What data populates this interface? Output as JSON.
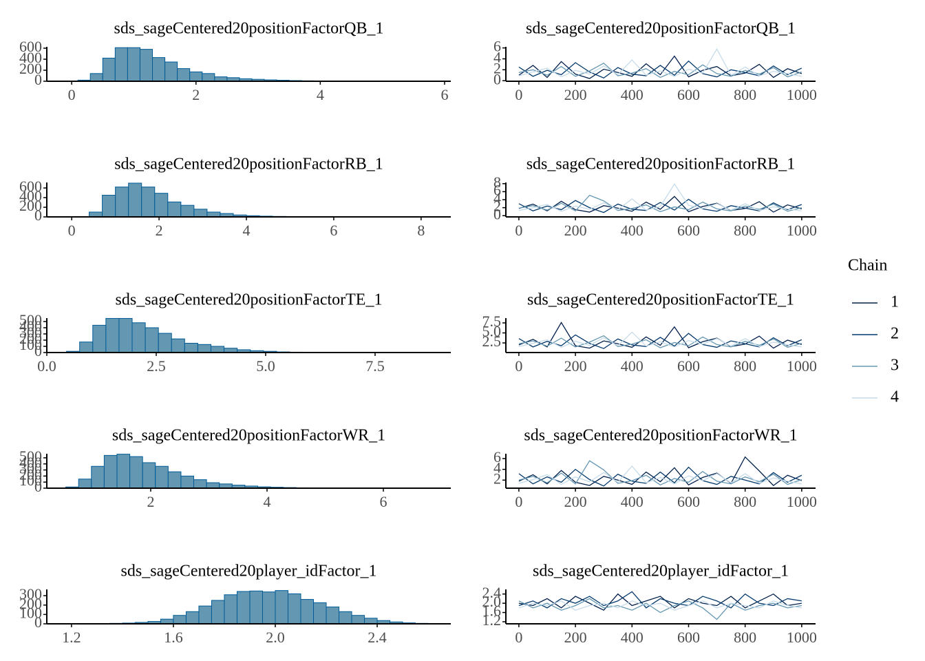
{
  "legend": {
    "title": "Chain",
    "position": "right"
  },
  "chart_data": [
    {
      "type": "histogram",
      "title": "sds_sageCentered20positionFactorQB_1",
      "color": "#6497b1",
      "edgecolor": "#005b96",
      "bins": [
        0.1,
        0.3,
        0.5,
        0.7,
        0.9,
        1.1,
        1.3,
        1.5,
        1.7,
        1.9,
        2.1,
        2.3,
        2.5,
        2.7,
        2.9,
        3.1,
        3.3,
        3.5,
        3.7,
        3.9,
        4.1,
        4.3,
        4.5,
        4.7
      ],
      "counts": [
        20,
        140,
        420,
        610,
        610,
        580,
        430,
        350,
        230,
        170,
        140,
        80,
        65,
        45,
        35,
        25,
        18,
        12,
        8,
        6,
        4,
        3,
        2
      ],
      "xlim": [
        -0.4,
        6.1
      ],
      "ylim": [
        0,
        625
      ],
      "xticks": [
        0,
        2,
        4,
        6
      ],
      "yticks": [
        0,
        200,
        400,
        600
      ]
    },
    {
      "type": "histogram",
      "title": "sds_sageCentered20positionFactorRB_1",
      "color": "#6497b1",
      "edgecolor": "#005b96",
      "bins": [
        0.4,
        0.7,
        1.0,
        1.3,
        1.6,
        1.9,
        2.2,
        2.5,
        2.8,
        3.1,
        3.4,
        3.7,
        4.0,
        4.3,
        4.6,
        4.9,
        5.2
      ],
      "counts": [
        100,
        450,
        620,
        700,
        620,
        490,
        310,
        240,
        160,
        100,
        70,
        40,
        25,
        15,
        10,
        5
      ],
      "xlim": [
        -0.57,
        8.68
      ],
      "ylim": [
        0,
        714
      ],
      "xticks": [
        0,
        2,
        4,
        6,
        8
      ],
      "yticks": [
        0,
        200,
        400,
        600
      ]
    },
    {
      "type": "histogram",
      "title": "sds_sageCentered20positionFactorTE_1",
      "color": "#6497b1",
      "edgecolor": "#005b96",
      "bins": [
        0.45,
        0.75,
        1.05,
        1.35,
        1.65,
        1.95,
        2.25,
        2.55,
        2.85,
        3.15,
        3.45,
        3.75,
        4.05,
        4.35,
        4.65,
        4.95,
        5.25,
        5.55,
        5.85,
        6.15
      ],
      "counts": [
        20,
        170,
        440,
        550,
        550,
        480,
        400,
        310,
        220,
        150,
        130,
        100,
        70,
        45,
        30,
        20,
        10,
        6,
        4
      ],
      "xlim": [
        0,
        9.23
      ],
      "ylim": [
        0,
        555
      ],
      "xticks": [
        {
          "value": 0,
          "label": "0.0"
        },
        2.5,
        {
          "value": 5,
          "label": "5.0"
        },
        7.5
      ],
      "yticks": [
        0,
        100,
        200,
        300,
        400,
        500
      ]
    },
    {
      "type": "histogram",
      "title": "sds_sageCentered20positionFactorWR_1",
      "color": "#6497b1",
      "edgecolor": "#005b96",
      "bins": [
        0.54,
        0.76,
        0.98,
        1.2,
        1.42,
        1.64,
        1.86,
        2.08,
        2.3,
        2.52,
        2.74,
        2.96,
        3.18,
        3.4,
        3.62,
        3.84,
        4.06,
        4.28,
        4.5,
        4.72,
        4.94
      ],
      "counts": [
        20,
        150,
        360,
        540,
        560,
        520,
        420,
        360,
        270,
        200,
        140,
        90,
        70,
        50,
        35,
        22,
        15,
        10,
        6,
        4
      ],
      "xlim": [
        0.213,
        7.16
      ],
      "ylim": [
        0,
        567
      ],
      "xticks": [
        2,
        4,
        6
      ],
      "yticks": [
        0,
        100,
        200,
        300,
        400,
        500
      ]
    },
    {
      "type": "histogram",
      "title": "sds_sageCentered20player_idFactor_1",
      "color": "#6497b1",
      "edgecolor": "#005b96",
      "bins": [
        1.2,
        1.25,
        1.3,
        1.35,
        1.4,
        1.45,
        1.5,
        1.55,
        1.6,
        1.65,
        1.7,
        1.75,
        1.8,
        1.85,
        1.9,
        1.95,
        2.0,
        2.05,
        2.1,
        2.15,
        2.2,
        2.25,
        2.3,
        2.35,
        2.4,
        2.45,
        2.5,
        2.55,
        2.6,
        2.65
      ],
      "counts": [
        1,
        2,
        3,
        5,
        8,
        15,
        25,
        50,
        90,
        130,
        190,
        250,
        310,
        345,
        350,
        340,
        355,
        320,
        260,
        225,
        180,
        130,
        90,
        60,
        35,
        20,
        10,
        5,
        2
      ],
      "xlim": [
        1.103,
        2.689
      ],
      "ylim": [
        0,
        367
      ],
      "xticks": [
        1.2,
        1.6,
        {
          "value": 2,
          "label": "2.0"
        },
        2.4
      ],
      "yticks": [
        0,
        100,
        200,
        300
      ]
    },
    {
      "type": "line",
      "title": "sds_sageCentered20positionFactorQB_1",
      "x": [
        0,
        50,
        100,
        150,
        200,
        250,
        300,
        350,
        400,
        450,
        500,
        550,
        600,
        650,
        700,
        750,
        800,
        850,
        900,
        950,
        1000
      ],
      "series": [
        {
          "name": "1",
          "color": "#011f4b",
          "values": [
            1.0,
            2.8,
            0.6,
            3.5,
            1.2,
            0.4,
            2.1,
            1.5,
            0.8,
            3.1,
            1.1,
            4.5,
            0.7,
            1.9,
            2.6,
            0.9,
            1.4,
            3.0,
            0.6,
            2.2,
            1.3
          ]
        },
        {
          "name": "2",
          "color": "#03396c",
          "values": [
            2.5,
            0.8,
            1.9,
            1.1,
            3.3,
            1.6,
            0.5,
            2.4,
            1.2,
            0.9,
            2.8,
            1.0,
            3.6,
            1.3,
            0.7,
            2.0,
            1.5,
            0.9,
            2.7,
            1.1,
            2.3
          ]
        },
        {
          "name": "3",
          "color": "#6497b1",
          "values": [
            1.5,
            2.0,
            1.0,
            2.6,
            0.8,
            1.8,
            3.2,
            0.9,
            1.4,
            2.2,
            0.6,
            1.7,
            1.1,
            2.9,
            1.3,
            0.8,
            1.9,
            1.2,
            2.4,
            0.7,
            1.6
          ]
        },
        {
          "name": "4",
          "color": "#c6dbe9",
          "values": [
            0.9,
            1.6,
            2.3,
            0.7,
            1.9,
            1.2,
            2.7,
            1.1,
            3.8,
            1.0,
            1.8,
            0.8,
            2.1,
            1.4,
            5.8,
            1.0,
            2.5,
            0.9,
            1.7,
            1.3,
            0.8
          ]
        }
      ],
      "xlim": [
        -46,
        1049
      ],
      "ylim": [
        -0.1,
        6.2
      ],
      "xticks": [
        0,
        200,
        400,
        600,
        800,
        1000
      ],
      "yticks": [
        0,
        2,
        4,
        6
      ]
    },
    {
      "type": "line",
      "title": "sds_sageCentered20positionFactorRB_1",
      "x": [
        0,
        50,
        100,
        150,
        200,
        250,
        300,
        350,
        400,
        450,
        500,
        550,
        600,
        650,
        700,
        750,
        800,
        850,
        900,
        950,
        1000
      ],
      "series": [
        {
          "name": "1",
          "color": "#011f4b",
          "values": [
            1.8,
            2.9,
            1.2,
            3.6,
            1.5,
            0.9,
            2.5,
            1.9,
            1.1,
            3.4,
            1.6,
            4.8,
            1.0,
            2.3,
            3.1,
            1.3,
            1.8,
            3.5,
            0.9,
            2.7,
            1.7
          ]
        },
        {
          "name": "2",
          "color": "#03396c",
          "values": [
            3.0,
            1.2,
            2.4,
            1.5,
            3.8,
            2.0,
            0.8,
            2.9,
            1.6,
            1.3,
            3.3,
            1.4,
            4.1,
            1.7,
            1.1,
            2.5,
            1.9,
            1.2,
            3.2,
            1.5,
            2.8
          ]
        },
        {
          "name": "3",
          "color": "#6497b1",
          "values": [
            1.9,
            2.5,
            1.4,
            3.1,
            1.2,
            5.1,
            3.7,
            1.3,
            1.8,
            2.7,
            1.0,
            2.2,
            1.5,
            3.4,
            1.7,
            1.2,
            2.4,
            1.6,
            2.9,
            1.1,
            2.0
          ]
        },
        {
          "name": "4",
          "color": "#c6dbe9",
          "values": [
            1.3,
            2.0,
            2.8,
            1.1,
            2.4,
            1.6,
            3.2,
            1.5,
            4.2,
            1.4,
            2.3,
            7.9,
            2.6,
            1.8,
            3.0,
            1.4,
            3.0,
            1.3,
            2.2,
            1.7,
            1.2
          ]
        }
      ],
      "xlim": [
        -46,
        1049
      ],
      "ylim": [
        -0.3,
        8.3
      ],
      "xticks": [
        0,
        200,
        400,
        600,
        800,
        1000
      ],
      "yticks": [
        0,
        2,
        4,
        6,
        8
      ]
    },
    {
      "type": "line",
      "title": "sds_sageCentered20positionFactorTE_1",
      "x": [
        0,
        50,
        100,
        150,
        200,
        250,
        300,
        350,
        400,
        450,
        500,
        550,
        600,
        650,
        700,
        750,
        800,
        850,
        900,
        950,
        1000
      ],
      "series": [
        {
          "name": "1",
          "color": "#011f4b",
          "values": [
            2.0,
            3.4,
            1.5,
            7.6,
            1.8,
            1.2,
            3.0,
            2.3,
            1.4,
            4.0,
            1.9,
            6.5,
            1.3,
            2.8,
            3.7,
            1.6,
            2.2,
            4.2,
            1.2,
            3.2,
            2.1
          ]
        },
        {
          "name": "2",
          "color": "#03396c",
          "values": [
            3.6,
            1.5,
            2.9,
            1.8,
            4.5,
            2.4,
            1.1,
            3.5,
            2.0,
            1.6,
            3.9,
            1.7,
            4.9,
            2.1,
            1.4,
            3.0,
            2.3,
            1.5,
            3.8,
            1.8,
            3.3
          ]
        },
        {
          "name": "3",
          "color": "#6497b1",
          "values": [
            2.3,
            3.0,
            1.7,
            3.7,
            1.5,
            2.7,
            4.3,
            1.6,
            2.2,
            3.3,
            1.3,
            2.6,
            1.8,
            4.0,
            2.1,
            1.5,
            2.9,
            1.9,
            3.5,
            1.4,
            2.4
          ]
        },
        {
          "name": "4",
          "color": "#c6dbe9",
          "values": [
            1.6,
            2.4,
            3.3,
            1.4,
            2.9,
            1.9,
            3.8,
            1.8,
            5.2,
            1.7,
            2.8,
            1.5,
            3.1,
            2.2,
            3.6,
            1.7,
            3.6,
            1.6,
            2.7,
            2.0,
            1.5
          ]
        }
      ],
      "xlim": [
        -46,
        1049
      ],
      "ylim": [
        0.1,
        8.7
      ],
      "xticks": [
        0,
        200,
        400,
        600,
        800,
        1000
      ],
      "yticks": [
        2.5,
        {
          "value": 5,
          "label": "5.0"
        },
        7.5
      ]
    },
    {
      "type": "line",
      "title": "sds_sageCentered20positionFactorWR_1",
      "x": [
        0,
        50,
        100,
        150,
        200,
        250,
        300,
        350,
        400,
        450,
        500,
        550,
        600,
        650,
        700,
        750,
        800,
        850,
        900,
        950,
        1000
      ],
      "series": [
        {
          "name": "1",
          "color": "#011f4b",
          "values": [
            1.8,
            3.0,
            1.3,
            3.8,
            1.6,
            1.0,
            2.7,
            2.0,
            1.2,
            3.5,
            1.7,
            4.3,
            1.1,
            2.5,
            3.3,
            1.4,
            6.3,
            3.7,
            1.0,
            2.9,
            1.9
          ]
        },
        {
          "name": "2",
          "color": "#03396c",
          "values": [
            3.2,
            1.3,
            2.6,
            1.6,
            4.0,
            2.1,
            0.9,
            3.1,
            1.8,
            1.4,
            3.5,
            1.5,
            4.4,
            1.9,
            1.2,
            2.7,
            2.0,
            1.3,
            3.4,
            1.6,
            2.9
          ]
        },
        {
          "name": "3",
          "color": "#6497b1",
          "values": [
            2.0,
            2.7,
            1.5,
            3.3,
            1.3,
            5.6,
            3.9,
            1.4,
            1.9,
            2.9,
            1.1,
            2.3,
            1.6,
            3.6,
            1.8,
            1.3,
            2.6,
            1.7,
            3.1,
            1.2,
            2.1
          ]
        },
        {
          "name": "4",
          "color": "#c6dbe9",
          "values": [
            1.4,
            2.1,
            3.0,
            1.2,
            2.6,
            1.7,
            3.4,
            1.6,
            4.6,
            1.5,
            2.5,
            1.3,
            2.8,
            1.9,
            3.2,
            1.5,
            3.2,
            1.4,
            2.4,
            1.8,
            1.3
          ]
        }
      ],
      "xlim": [
        -46,
        1049
      ],
      "ylim": [
        0.5,
        6.9
      ],
      "xticks": [
        0,
        200,
        400,
        600,
        800,
        1000
      ],
      "yticks": [
        2,
        4,
        6
      ]
    },
    {
      "type": "line",
      "title": "sds_sageCentered20player_idFactor_1",
      "x": [
        0,
        50,
        100,
        150,
        200,
        250,
        300,
        350,
        400,
        450,
        500,
        550,
        600,
        650,
        700,
        750,
        800,
        850,
        900,
        950,
        1000
      ],
      "series": [
        {
          "name": "1",
          "color": "#011f4b",
          "values": [
            2.0,
            1.9,
            2.2,
            1.8,
            2.3,
            2.0,
            1.7,
            2.4,
            1.9,
            2.1,
            2.3,
            1.8,
            2.2,
            2.0,
            1.9,
            2.3,
            1.8,
            2.1,
            2.4,
            1.9,
            2.0
          ]
        },
        {
          "name": "2",
          "color": "#03396c",
          "values": [
            1.9,
            2.1,
            1.8,
            2.2,
            2.0,
            2.3,
            1.9,
            2.1,
            2.5,
            1.8,
            2.2,
            2.0,
            1.9,
            2.3,
            2.1,
            1.8,
            2.4,
            2.0,
            1.9,
            2.2,
            2.1
          ]
        },
        {
          "name": "3",
          "color": "#6497b1",
          "values": [
            2.1,
            1.8,
            2.0,
            1.7,
            1.9,
            2.2,
            1.8,
            1.9,
            1.7,
            2.0,
            1.6,
            1.9,
            2.1,
            1.8,
            1.3,
            2.0,
            1.7,
            1.9,
            2.0,
            1.8,
            1.9
          ]
        },
        {
          "name": "4",
          "color": "#c6dbe9",
          "values": [
            1.8,
            2.0,
            1.9,
            2.1,
            1.7,
            1.9,
            2.0,
            1.8,
            2.1,
            1.9,
            2.0,
            1.7,
            1.9,
            2.1,
            1.8,
            2.0,
            1.9,
            1.8,
            2.1,
            1.9,
            1.8
          ]
        }
      ],
      "xlim": [
        -46,
        1049
      ],
      "ylim": [
        1.11,
        2.6
      ],
      "xticks": [
        0,
        200,
        400,
        600,
        800,
        1000
      ],
      "yticks": [
        1.2,
        1.6,
        {
          "value": 2,
          "label": "2.0"
        },
        2.4
      ]
    }
  ]
}
